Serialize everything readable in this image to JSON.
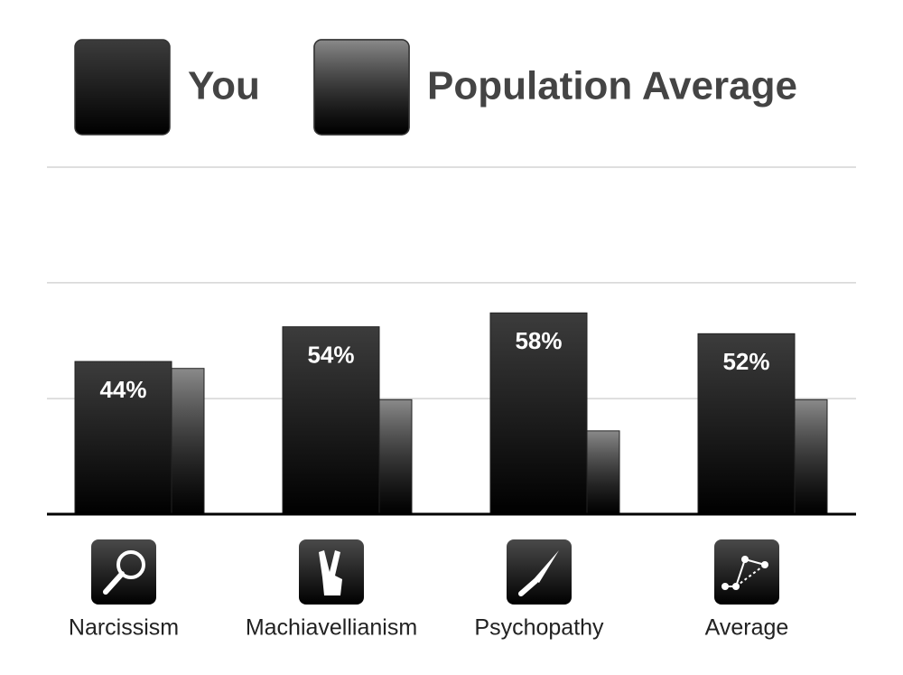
{
  "chart_data": {
    "type": "bar",
    "categories": [
      "Narcissism",
      "Machiavellianism",
      "Psychopathy",
      "Average"
    ],
    "series": [
      {
        "name": "You",
        "color": "#3c3c3c",
        "values": [
          44,
          54,
          58,
          52
        ],
        "value_labels": [
          "44%",
          "54%",
          "58%",
          "52%"
        ]
      },
      {
        "name": "Population Average",
        "color": "#8a8a8a",
        "values": [
          42,
          33,
          24,
          33
        ]
      }
    ],
    "ylim": [
      0,
      100
    ],
    "yticks": [
      33.3,
      66.7,
      100
    ],
    "grid": true
  }
}
